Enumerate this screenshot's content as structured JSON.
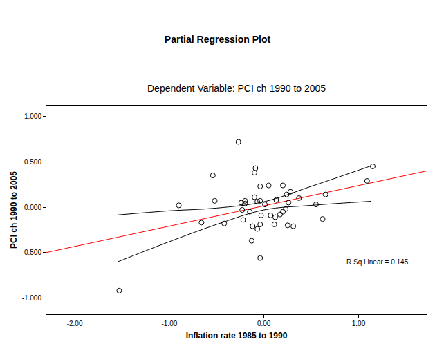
{
  "chart_data": {
    "type": "scatter",
    "title": "Partial Regression Plot",
    "subtitle": "Dependent Variable: PCI ch 1990 to 2005",
    "x_label": "Inflation rate 1985 to 1990",
    "y_label": "PCI ch 1990 to 2005",
    "x": [
      -0.27,
      -0.09,
      -0.1,
      -0.54,
      -0.52,
      -0.9,
      -0.66,
      -0.42,
      -1.53,
      -0.24,
      -0.2,
      -0.2,
      -0.23,
      -0.22,
      -0.15,
      -0.12,
      -0.13,
      -0.1,
      -0.07,
      -0.07,
      -0.04,
      -0.04,
      -0.03,
      -0.04,
      -0.04,
      0.01,
      0.05,
      0.07,
      0.11,
      0.12,
      0.13,
      0.17,
      0.2,
      0.2,
      0.23,
      0.24,
      0.25,
      0.26,
      0.28,
      0.31,
      0.37,
      0.55,
      0.62,
      0.65,
      1.09,
      1.15
    ],
    "y": [
      0.72,
      0.43,
      0.38,
      0.35,
      0.07,
      0.02,
      -0.17,
      -0.18,
      -0.92,
      0.05,
      0.07,
      0.04,
      -0.03,
      -0.14,
      -0.05,
      -0.21,
      -0.37,
      0.11,
      -0.24,
      0.06,
      0.07,
      0.23,
      -0.09,
      -0.19,
      -0.56,
      0.03,
      0.24,
      -0.09,
      -0.19,
      -0.11,
      0.08,
      -0.08,
      -0.05,
      0.24,
      -0.02,
      0.14,
      -0.2,
      0.05,
      0.17,
      -0.21,
      0.1,
      0.03,
      -0.13,
      0.14,
      0.29,
      0.45
    ],
    "color": "#000000",
    "marker": "open circle",
    "fit_line": {
      "x": [
        -2.3,
        1.72
      ],
      "y": [
        -0.5,
        0.4
      ],
      "color": "#ff0000"
    },
    "confidence_band": {
      "x": [
        -1.54,
        -1.0,
        -0.5,
        0.0,
        0.5,
        1.13
      ],
      "upper": [
        -0.085,
        -0.04,
        -0.01,
        0.06,
        0.23,
        0.455
      ],
      "lower": [
        -0.6,
        -0.38,
        -0.19,
        -0.03,
        0.02,
        0.065
      ],
      "color": "#000000"
    },
    "annotations": [
      "R Sq Linear = 0.145"
    ],
    "xlim": [
      -2.3,
      1.72
    ],
    "ylim": [
      -1.18,
      1.12
    ],
    "xticks": [
      {
        "value": -2,
        "label": "-2.00"
      },
      {
        "value": -1,
        "label": "-1.00"
      },
      {
        "value": 0,
        "label": "0.00"
      },
      {
        "value": 1,
        "label": "1.00"
      }
    ],
    "yticks": [
      {
        "value": -1,
        "label": "-1.000"
      },
      {
        "value": -0.5,
        "label": "-0.500"
      },
      {
        "value": 0,
        "label": "0.000"
      },
      {
        "value": 0.5,
        "label": "0.500"
      },
      {
        "value": 1,
        "label": "1.000"
      }
    ],
    "grid": false
  }
}
